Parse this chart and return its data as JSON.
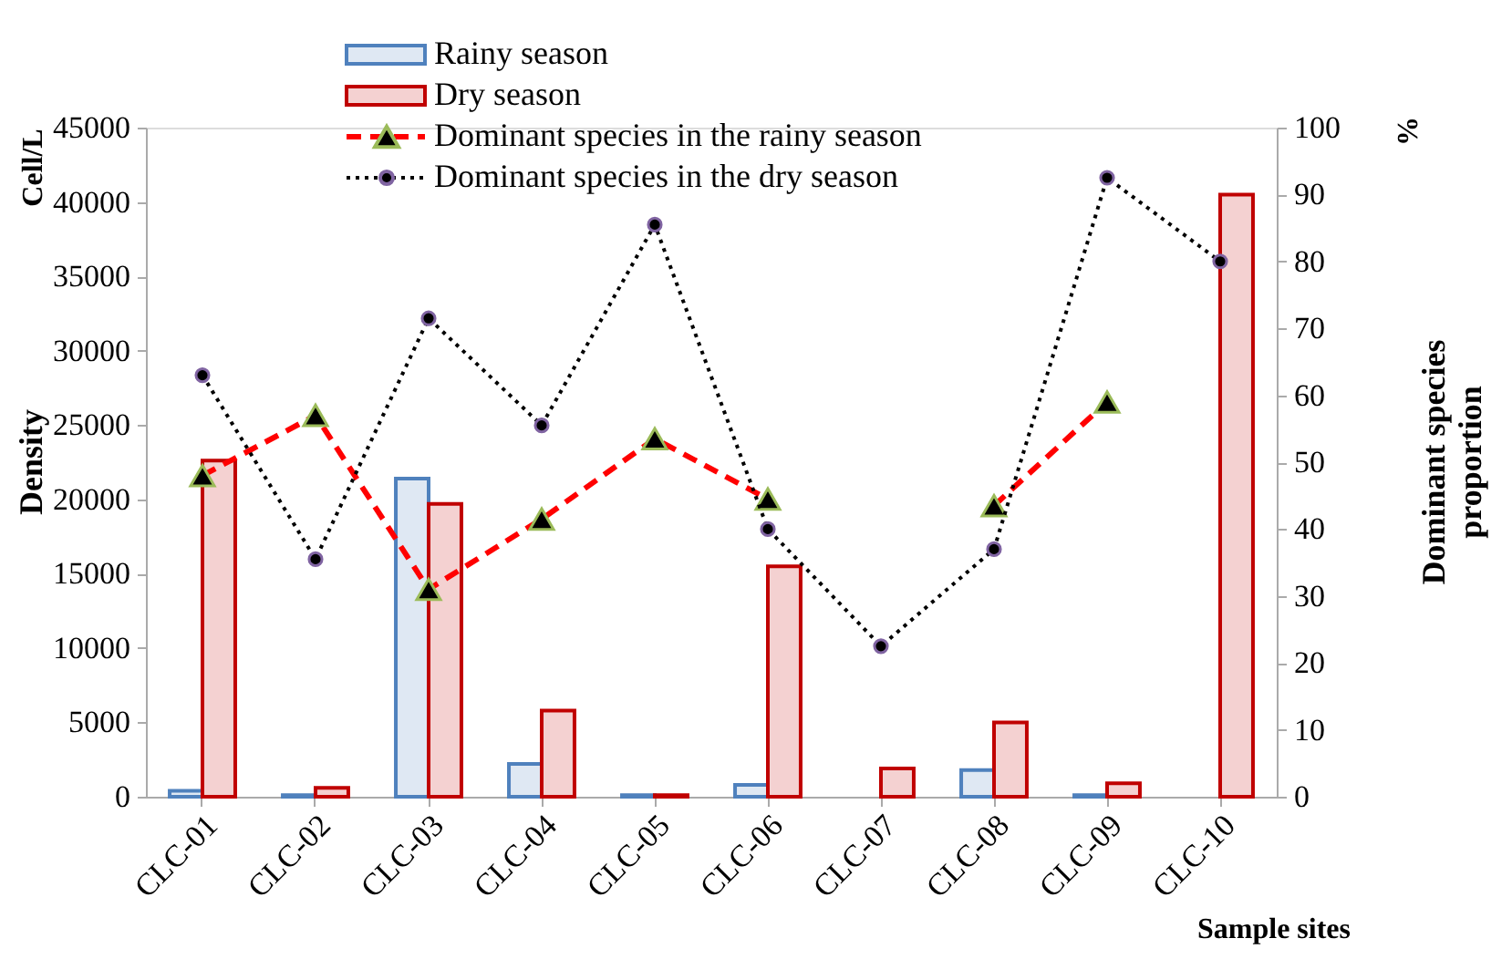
{
  "chart_data": {
    "type": "bar",
    "categories": [
      "CLC-01",
      "CLC-02",
      "CLC-03",
      "CLC-04",
      "CLC-05",
      "CLC-06",
      "CLC-07",
      "CLC-08",
      "CLC-09",
      "CLC-10"
    ],
    "series": [
      {
        "name": "Rainy season",
        "color": "#4f81bd",
        "values": [
          400,
          100,
          21400,
          2200,
          100,
          800,
          null,
          1800,
          100,
          null
        ]
      },
      {
        "name": "Dry season",
        "color": "#c00000",
        "values": [
          22600,
          600,
          19700,
          5800,
          100,
          15500,
          1900,
          5000,
          900,
          40500
        ]
      },
      {
        "name": "Dominant species in the rainy season",
        "type": "line",
        "axis": "y2",
        "color": "#ff0000",
        "line_style": "dashed",
        "marker": "triangle",
        "values": [
          48,
          57,
          31,
          41.5,
          53.5,
          44.5,
          null,
          43.5,
          59,
          null
        ]
      },
      {
        "name": "Dominant species in the dry season",
        "type": "line",
        "axis": "y2",
        "color": "#000000",
        "line_style": "dotted",
        "marker": "circle",
        "values": [
          63,
          35.5,
          71.5,
          55.5,
          85.5,
          40,
          22.5,
          37,
          92.5,
          80
        ]
      }
    ],
    "xlabel": "Sample sites",
    "ylabel": "Density",
    "y2label": "Dominant species proportion",
    "annotations": [
      "Cell/L",
      "%"
    ],
    "ylim": [
      0,
      45000
    ],
    "yticks": [
      0,
      5000,
      10000,
      15000,
      20000,
      25000,
      30000,
      35000,
      40000,
      45000
    ],
    "y2lim": [
      0,
      100
    ],
    "y2ticks": [
      0,
      10,
      20,
      30,
      40,
      50,
      60,
      70,
      80,
      90,
      100
    ],
    "grid": false,
    "legend": "top"
  }
}
